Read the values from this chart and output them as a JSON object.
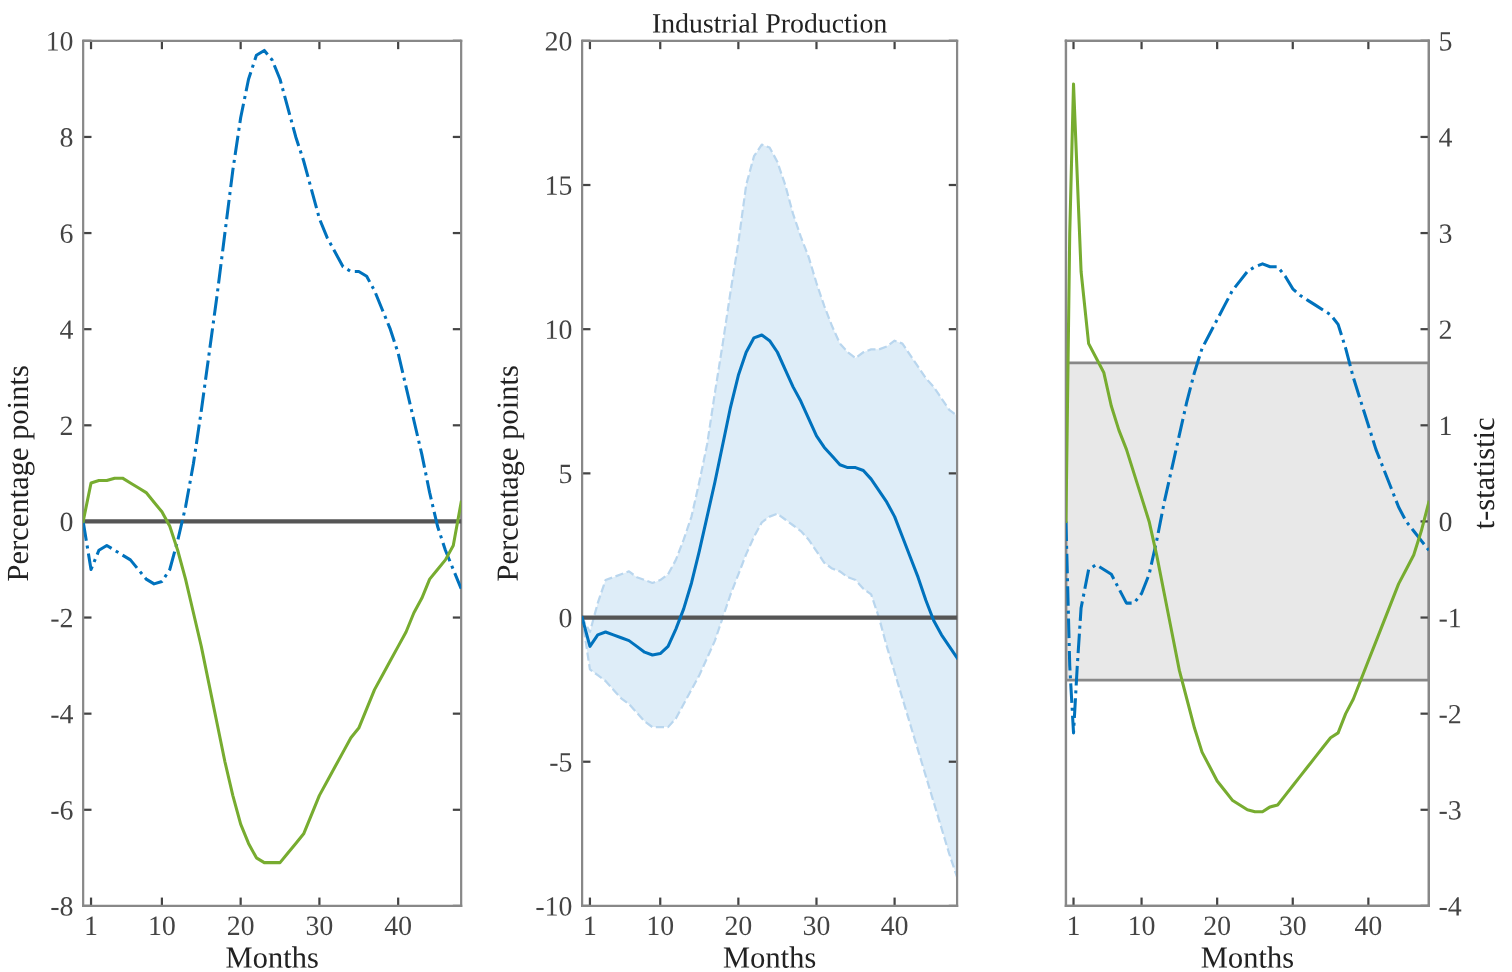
{
  "chart_data": [
    {
      "type": "line",
      "xlabel": "Months",
      "ylabel": "Percentage points",
      "xlim": [
        0,
        48
      ],
      "xticks": [
        1,
        10,
        20,
        30,
        40
      ],
      "ylim": [
        -8,
        10
      ],
      "yticks": [
        -8,
        -6,
        -4,
        -2,
        0,
        2,
        4,
        6,
        8,
        10
      ],
      "grid": false,
      "legend": false,
      "x": [
        0,
        1,
        2,
        3,
        4,
        5,
        6,
        7,
        8,
        9,
        10,
        11,
        12,
        13,
        14,
        15,
        16,
        17,
        18,
        19,
        20,
        21,
        22,
        23,
        24,
        25,
        26,
        27,
        28,
        29,
        30,
        31,
        32,
        33,
        34,
        35,
        36,
        37,
        38,
        39,
        40,
        41,
        42,
        43,
        44,
        45,
        46,
        47,
        48
      ],
      "ref_lines": [
        {
          "axis": "y",
          "value": 0,
          "color": "#555555"
        }
      ],
      "series": [
        {
          "color": "#0072bd",
          "line_style": "dashdot",
          "values": [
            0,
            -1.0,
            -0.6,
            -0.5,
            -0.6,
            -0.7,
            -0.8,
            -1.0,
            -1.2,
            -1.3,
            -1.25,
            -1.0,
            -0.4,
            0.3,
            1.2,
            2.3,
            3.5,
            4.7,
            6.0,
            7.3,
            8.4,
            9.2,
            9.7,
            9.8,
            9.6,
            9.2,
            8.6,
            8.0,
            7.5,
            6.9,
            6.3,
            5.9,
            5.6,
            5.3,
            5.2,
            5.2,
            5.1,
            4.8,
            4.4,
            4.0,
            3.5,
            2.8,
            2.1,
            1.4,
            0.6,
            -0.1,
            -0.6,
            -1.0,
            -1.4
          ]
        },
        {
          "color": "#77ac30",
          "line_style": "solid",
          "values": [
            0,
            0.8,
            0.85,
            0.85,
            0.9,
            0.9,
            0.8,
            0.7,
            0.6,
            0.4,
            0.2,
            -0.1,
            -0.6,
            -1.2,
            -1.9,
            -2.6,
            -3.4,
            -4.2,
            -5.0,
            -5.7,
            -6.3,
            -6.7,
            -7.0,
            -7.1,
            -7.1,
            -7.1,
            -6.9,
            -6.7,
            -6.5,
            -6.1,
            -5.7,
            -5.4,
            -5.1,
            -4.8,
            -4.5,
            -4.3,
            -3.9,
            -3.5,
            -3.2,
            -2.9,
            -2.6,
            -2.3,
            -1.9,
            -1.6,
            -1.2,
            -1.0,
            -0.8,
            -0.5,
            0.4
          ]
        }
      ]
    },
    {
      "type": "line",
      "title": "Industrial Production",
      "xlabel": "Months",
      "ylabel": "Percentage points",
      "xlim": [
        0,
        48
      ],
      "xticks": [
        1,
        10,
        20,
        30,
        40
      ],
      "ylim": [
        -10,
        20
      ],
      "yticks": [
        -10,
        -5,
        0,
        5,
        10,
        15,
        20
      ],
      "grid": false,
      "legend": false,
      "x": [
        0,
        1,
        2,
        3,
        4,
        5,
        6,
        7,
        8,
        9,
        10,
        11,
        12,
        13,
        14,
        15,
        16,
        17,
        18,
        19,
        20,
        21,
        22,
        23,
        24,
        25,
        26,
        27,
        28,
        29,
        30,
        31,
        32,
        33,
        34,
        35,
        36,
        37,
        38,
        39,
        40,
        41,
        42,
        43,
        44,
        45,
        46,
        47,
        48
      ],
      "ref_lines": [
        {
          "axis": "y",
          "value": 0,
          "color": "#555555"
        }
      ],
      "series": [
        {
          "color": "#0072bd",
          "line_style": "solid",
          "values": [
            0,
            -1.0,
            -0.6,
            -0.5,
            -0.6,
            -0.7,
            -0.8,
            -1.0,
            -1.2,
            -1.3,
            -1.25,
            -1.0,
            -0.4,
            0.3,
            1.2,
            2.3,
            3.5,
            4.7,
            6.0,
            7.3,
            8.4,
            9.2,
            9.7,
            9.8,
            9.6,
            9.2,
            8.6,
            8.0,
            7.5,
            6.9,
            6.3,
            5.9,
            5.6,
            5.3,
            5.2,
            5.2,
            5.1,
            4.8,
            4.4,
            4.0,
            3.5,
            2.8,
            2.1,
            1.4,
            0.6,
            -0.1,
            -0.6,
            -1.0,
            -1.4
          ],
          "upper": [
            0,
            -0.5,
            0.5,
            1.3,
            1.4,
            1.5,
            1.6,
            1.4,
            1.3,
            1.2,
            1.3,
            1.5,
            2,
            2.7,
            3.5,
            4.7,
            6,
            7.8,
            9.5,
            11.3,
            13,
            15,
            16,
            16.4,
            16.3,
            15.8,
            15,
            14,
            13.2,
            12.5,
            11.6,
            10.8,
            10.1,
            9.5,
            9.2,
            9,
            9.2,
            9.3,
            9.3,
            9.4,
            9.6,
            9.5,
            9.1,
            8.7,
            8.3,
            8,
            7.6,
            7.2,
            7.0
          ],
          "lower": [
            0,
            -1.8,
            -2.0,
            -2.2,
            -2.5,
            -2.8,
            -3.0,
            -3.3,
            -3.6,
            -3.8,
            -3.8,
            -3.8,
            -3.5,
            -3,
            -2.5,
            -2,
            -1.4,
            -0.8,
            0,
            0.8,
            1.5,
            2.2,
            2.8,
            3.3,
            3.5,
            3.6,
            3.4,
            3.2,
            3.0,
            2.7,
            2.3,
            1.9,
            1.7,
            1.6,
            1.4,
            1.3,
            1.0,
            0.8,
            0,
            -1,
            -1.9,
            -2.8,
            -3.7,
            -4.6,
            -5.5,
            -6.4,
            -7.3,
            -8.2,
            -9.0
          ]
        }
      ]
    },
    {
      "type": "line",
      "xlabel": "Months",
      "y2label": "t-statistic",
      "xlim": [
        0,
        48
      ],
      "xticks": [
        1,
        10,
        20,
        30,
        40
      ],
      "y2lim": [
        -4,
        5
      ],
      "y2ticks": [
        -4,
        -3,
        -2,
        -1,
        0,
        1,
        2,
        3,
        4,
        5
      ],
      "grid": false,
      "legend": false,
      "bands": [
        {
          "axis": "y2",
          "from": -1.65,
          "to": 1.65,
          "color": "#e8e8e8"
        }
      ],
      "series": [
        {
          "color": "#0072bd",
          "line_style": "dashdot",
          "axis": "y2",
          "x": [
            0,
            0.5,
            1,
            1.5,
            2,
            3,
            4,
            5,
            6,
            7,
            8,
            9,
            10,
            11,
            12,
            13,
            14,
            15,
            16,
            17,
            18,
            19,
            20,
            21,
            22,
            23,
            24,
            25,
            26,
            27,
            28,
            29,
            30,
            31,
            32,
            33,
            34,
            35,
            36,
            37,
            38,
            39,
            40,
            41,
            42,
            43,
            44,
            45,
            46,
            47,
            48
          ],
          "values": [
            0,
            -1.5,
            -2.2,
            -1.5,
            -0.9,
            -0.5,
            -0.45,
            -0.5,
            -0.55,
            -0.7,
            -0.85,
            -0.85,
            -0.75,
            -0.55,
            -0.2,
            0.2,
            0.55,
            0.9,
            1.25,
            1.55,
            1.8,
            1.95,
            2.1,
            2.25,
            2.4,
            2.5,
            2.6,
            2.65,
            2.68,
            2.65,
            2.65,
            2.55,
            2.42,
            2.35,
            2.3,
            2.25,
            2.2,
            2.15,
            2.05,
            1.8,
            1.5,
            1.25,
            1.0,
            0.75,
            0.55,
            0.35,
            0.15,
            0,
            -0.1,
            -0.2,
            -0.3
          ]
        },
        {
          "color": "#77ac30",
          "line_style": "solid",
          "axis": "y2",
          "x": [
            0,
            0.5,
            1,
            2,
            3,
            4,
            5,
            6,
            7,
            8,
            9,
            10,
            11,
            12,
            13,
            14,
            15,
            16,
            17,
            18,
            19,
            20,
            21,
            22,
            23,
            24,
            25,
            26,
            27,
            28,
            29,
            30,
            31,
            32,
            33,
            34,
            35,
            36,
            37,
            38,
            39,
            40,
            41,
            42,
            43,
            44,
            45,
            46,
            47,
            48
          ],
          "values": [
            0,
            3,
            4.55,
            2.6,
            1.85,
            1.7,
            1.55,
            1.2,
            0.95,
            0.75,
            0.5,
            0.25,
            0,
            -0.35,
            -0.75,
            -1.15,
            -1.55,
            -1.85,
            -2.15,
            -2.4,
            -2.55,
            -2.7,
            -2.8,
            -2.9,
            -2.95,
            -3.0,
            -3.02,
            -3.02,
            -2.97,
            -2.95,
            -2.85,
            -2.75,
            -2.65,
            -2.55,
            -2.45,
            -2.35,
            -2.25,
            -2.2,
            -2.0,
            -1.85,
            -1.65,
            -1.45,
            -1.25,
            -1.05,
            -0.85,
            -0.65,
            -0.5,
            -0.35,
            -0.1,
            0.2
          ]
        }
      ]
    }
  ]
}
